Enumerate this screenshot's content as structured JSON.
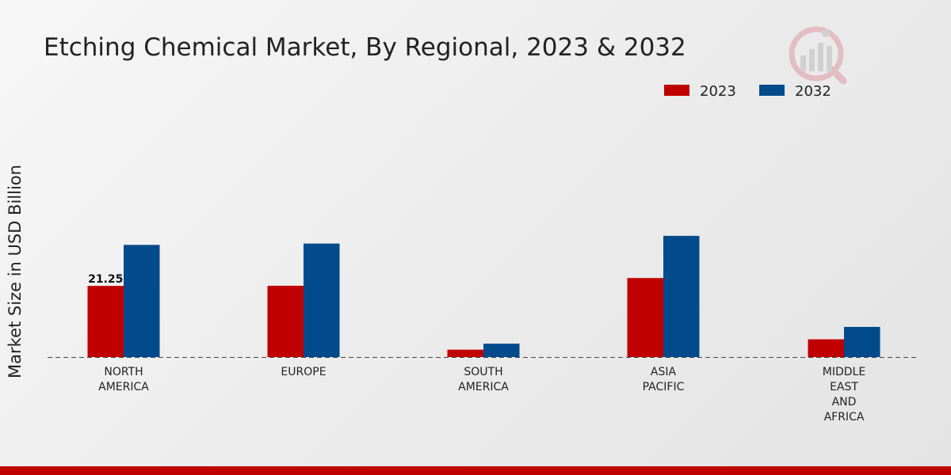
{
  "colors": {
    "series_2023": "#c00000",
    "series_2032": "#014a8c",
    "footer": "#c00000",
    "logo": "#c8243a"
  },
  "chart_data": {
    "type": "bar",
    "title": "Etching Chemical Market, By Regional, 2023 & 2032",
    "xlabel": "",
    "ylabel": "Market Size in USD Billion",
    "ylim": [
      0,
      70
    ],
    "grid": false,
    "legend": "top-right",
    "categories": [
      [
        "NORTH",
        "AMERICA"
      ],
      [
        "EUROPE"
      ],
      [
        "SOUTH",
        "AMERICA"
      ],
      [
        "ASIA",
        "PACIFIC"
      ],
      [
        "MIDDLE",
        "EAST",
        "AND",
        "AFRICA"
      ]
    ],
    "series": [
      {
        "name": "2023",
        "values": [
          21.25,
          21.3,
          2.2,
          23.6,
          5.3
        ]
      },
      {
        "name": "2032",
        "values": [
          33.5,
          33.9,
          4.0,
          36.2,
          9.0
        ]
      }
    ],
    "annotations": [
      {
        "series": 0,
        "category": 0,
        "text": "21.25"
      }
    ],
    "icon": "market-research-logo-icon"
  }
}
